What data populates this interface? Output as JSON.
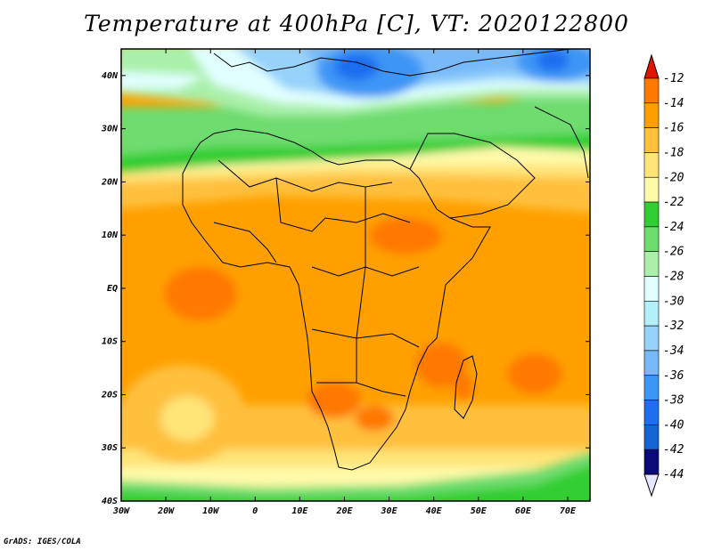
{
  "title": "Temperature at 400hPa [C], VT: 2020122800",
  "credit": "GrADS: IGES/COLA",
  "map": {
    "lon_range": [
      -30,
      75
    ],
    "lat_range": [
      -40,
      45
    ],
    "lat_ticks": [
      {
        "value": 40,
        "label": "40N"
      },
      {
        "value": 30,
        "label": "30N"
      },
      {
        "value": 20,
        "label": "20N"
      },
      {
        "value": 10,
        "label": "10N"
      },
      {
        "value": 0,
        "label": "EQ"
      },
      {
        "value": -10,
        "label": "10S"
      },
      {
        "value": -20,
        "label": "20S"
      },
      {
        "value": -30,
        "label": "30S"
      },
      {
        "value": -40,
        "label": "40S"
      }
    ],
    "lon_ticks": [
      {
        "value": -30,
        "label": "30W"
      },
      {
        "value": -20,
        "label": "20W"
      },
      {
        "value": -10,
        "label": "10W"
      },
      {
        "value": 0,
        "label": "0"
      },
      {
        "value": 10,
        "label": "10E"
      },
      {
        "value": 20,
        "label": "20E"
      },
      {
        "value": 30,
        "label": "30E"
      },
      {
        "value": 40,
        "label": "40E"
      },
      {
        "value": 50,
        "label": "50E"
      },
      {
        "value": 60,
        "label": "60E"
      },
      {
        "value": 70,
        "label": "70E"
      }
    ]
  },
  "colorbar": {
    "levels": [
      {
        "label": "-12",
        "color": "#fa3c3c"
      },
      {
        "label": "-14",
        "color": "#ff7800"
      },
      {
        "label": "-16",
        "color": "#ffa000"
      },
      {
        "label": "-18",
        "color": "#ffc03c"
      },
      {
        "label": "-20",
        "color": "#ffe478"
      },
      {
        "label": "-22",
        "color": "#fffaaa"
      },
      {
        "label": "-24",
        "color": "#32cd32"
      },
      {
        "label": "-26",
        "color": "#6edc6e"
      },
      {
        "label": "-28",
        "color": "#aaf0aa"
      },
      {
        "label": "-30",
        "color": "#e1ffff"
      },
      {
        "label": "-32",
        "color": "#b4f0fa"
      },
      {
        "label": "-34",
        "color": "#96d2fa"
      },
      {
        "label": "-36",
        "color": "#78b9fa"
      },
      {
        "label": "-38",
        "color": "#3c96f5"
      },
      {
        "label": "-40",
        "color": "#1e6ef0"
      },
      {
        "label": "-42",
        "color": "#1464d2"
      },
      {
        "label": "-44",
        "color": "#0a0a78"
      }
    ],
    "top_arrow_color": "#e11400",
    "bottom_arrow_color": "#e6e6ff"
  }
}
